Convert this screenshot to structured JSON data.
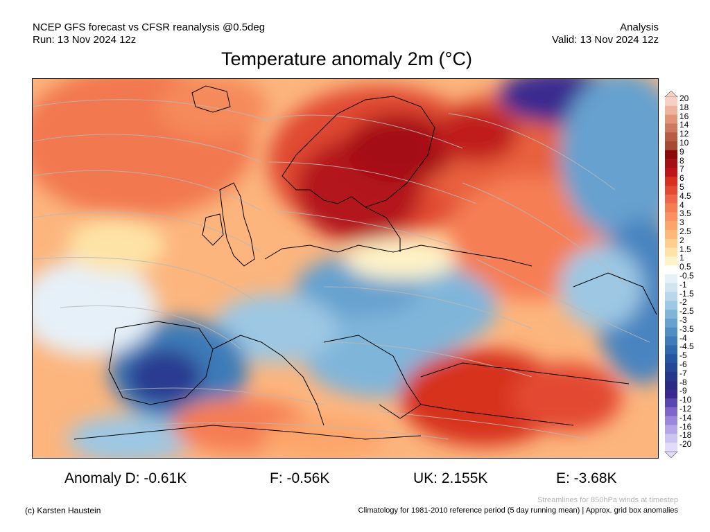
{
  "header": {
    "line1_left": "NCEP GFS forecast vs CFSR reanalysis @0.5deg",
    "line2_left": "Run: 13 Nov 2024 12z",
    "line1_right": "Analysis",
    "line2_right": "Valid: 13 Nov 2024 12z"
  },
  "title": "Temperature anomaly 2m (°C)",
  "colorbar": {
    "labels": [
      "20",
      "18",
      "16",
      "14",
      "12",
      "10",
      "9",
      "8",
      "7",
      "6",
      "5",
      "4.5",
      "4",
      "3.5",
      "3",
      "2.5",
      "2",
      "1.5",
      "1",
      "0.5",
      "-0.5",
      "-1",
      "-1.5",
      "-2",
      "-2.5",
      "-3",
      "-3.5",
      "-4",
      "-4.5",
      "-5",
      "-6",
      "-7",
      "-8",
      "-9",
      "-10",
      "-12",
      "-14",
      "-16",
      "-18",
      "-20"
    ],
    "colors": [
      "#f6d0c2",
      "#eeb39d",
      "#e0957b",
      "#cd7a5e",
      "#b85c45",
      "#a64a33",
      "#8a0a0a",
      "#a50f15",
      "#c0141c",
      "#d7301f",
      "#e34a33",
      "#ef6548",
      "#f57d52",
      "#fb9060",
      "#fca56b",
      "#fdb87a",
      "#fdcf8c",
      "#fee3a6",
      "#fef3c8",
      "#ffffff",
      "#e6f0f8",
      "#d1e5f0",
      "#b9d6ea",
      "#9dc7e3",
      "#80b5da",
      "#66a1cf",
      "#508ec4",
      "#3e7bb8",
      "#2f68ac",
      "#2556a0",
      "#224896",
      "#24398a",
      "#2a2a80",
      "#3a2a90",
      "#5a46b0",
      "#7e66c8",
      "#9a86da",
      "#b4a6e8",
      "#ccc4f2",
      "#e2dcfa"
    ],
    "top_arrow_color": "#f6d0c2",
    "bottom_arrow_color": "#e2dcfa"
  },
  "anomalies": {
    "D": "Anomaly D: -0.61K",
    "F": "F: -0.56K",
    "UK": "UK: 2.155K",
    "E": "E: -3.68K"
  },
  "footer": {
    "streamlines_note": "Streamlines for 850hPa winds at timestep",
    "credit": "(c) Karsten Haustein",
    "climatology": "Climatology for 1981-2010 reference period (5 day running mean) | Approx. grid box anomalies"
  },
  "map": {
    "base_color": "#fcb57d",
    "land_outline_color": "#000000",
    "streamline_color": "#b8b8b8"
  }
}
